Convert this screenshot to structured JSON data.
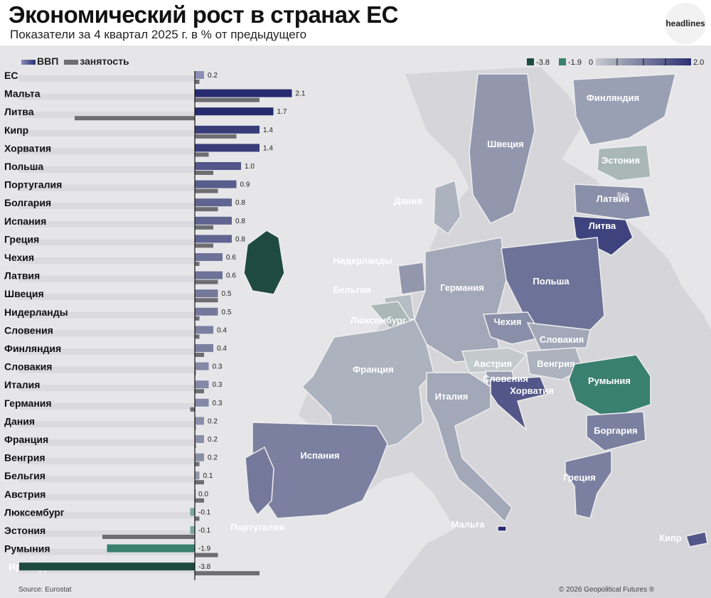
{
  "header": {
    "title": "Экономический рост в странах ЕС",
    "subtitle": "Показатели за 4 квартал 2025 г. в % от предыдущего",
    "logo": "headlines"
  },
  "legend": {
    "gdp": "ВВП",
    "employment": "занятость",
    "scale_labels": [
      "-3.8",
      "-1.9",
      "0",
      "2.0"
    ]
  },
  "colors": {
    "gdp_positive": "#2b3174",
    "gdp_negative": "#3a8070",
    "employment": "#6e6e72",
    "track": "#d7d7db",
    "map_scale": [
      "#1f4a42",
      "#3a8070",
      "#c4cacc",
      "#2b2f72"
    ]
  },
  "chart_data": {
    "type": "bar",
    "orientation": "horizontal",
    "categories": [
      "ЕС",
      "Мальта",
      "Литва",
      "Кипр",
      "Хорватия",
      "Польша",
      "Португалия",
      "Болгария",
      "Испания",
      "Греция",
      "Чехия",
      "Латвия",
      "Швеция",
      "Нидерланды",
      "Словения",
      "Финляндия",
      "Словакия",
      "Италия",
      "Германия",
      "Дания",
      "Франция",
      "Венгрия",
      "Бельгия",
      "Австрия",
      "Люксембург",
      "Эстония",
      "Румыния",
      "Ирландия"
    ],
    "series": [
      {
        "name": "ВВП",
        "values": [
          0.2,
          2.1,
          1.7,
          1.4,
          1.4,
          1.0,
          0.9,
          0.8,
          0.8,
          0.8,
          0.6,
          0.6,
          0.5,
          0.5,
          0.4,
          0.4,
          0.3,
          0.3,
          0.3,
          0.2,
          0.2,
          0.2,
          0.1,
          0.0,
          -0.1,
          -0.1,
          -1.9,
          -3.8
        ]
      },
      {
        "name": "занятость",
        "values": [
          0.1,
          1.4,
          -2.6,
          0.9,
          0.3,
          0.4,
          0.5,
          0.5,
          0.4,
          0.4,
          0.1,
          0.5,
          0.5,
          0.1,
          0.1,
          0.2,
          0.0,
          0.2,
          -0.1,
          0.0,
          0.0,
          0.1,
          0.2,
          0.2,
          0.1,
          -2.0,
          0.5,
          1.4
        ]
      }
    ],
    "value_labels": [
      "0.2",
      "2.1",
      "1.7",
      "1.4",
      "1.4",
      "1.0",
      "0.9",
      "0.8",
      "0.8",
      "0.8",
      "0.6",
      "0.6",
      "0.5",
      "0.5",
      "0.4",
      "0.4",
      "0.3",
      "0.3",
      "0.3",
      "0.2",
      "0.2",
      "0.2",
      "0.1",
      "0.0",
      "-0.1",
      "-0.1",
      "-1.9",
      "-3.8"
    ],
    "xlim": [
      -4.2,
      2.2
    ]
  },
  "map": {
    "regions": [
      {
        "name": "Финляндия",
        "value": 0.4,
        "label": "Финляндия"
      },
      {
        "name": "Швеция",
        "value": 0.5,
        "label": "Швеция"
      },
      {
        "name": "Эстония",
        "value": -0.1,
        "label": "Эстония"
      },
      {
        "name": "Латвия",
        "value": 0.6,
        "label": "Латвия"
      },
      {
        "name": "Литва",
        "value": 1.7,
        "label": "Литва"
      },
      {
        "name": "Дания",
        "value": 0.2,
        "label": "Дания"
      },
      {
        "name": "Нидерланды",
        "value": 0.5,
        "label": "Нидерланды"
      },
      {
        "name": "Бельгия",
        "value": 0.1,
        "label": "Бельгия"
      },
      {
        "name": "Люксембург",
        "value": -0.1,
        "label": "Люксембург"
      },
      {
        "name": "Германия",
        "value": 0.3,
        "label": "Германия"
      },
      {
        "name": "Польша",
        "value": 1.0,
        "label": "Польша"
      },
      {
        "name": "Чехия",
        "value": 0.6,
        "label": "Чехия"
      },
      {
        "name": "Словакия",
        "value": 0.3,
        "label": "Словакия"
      },
      {
        "name": "Австрия",
        "value": 0.0,
        "label": "Австрия"
      },
      {
        "name": "Венгрия",
        "value": 0.2,
        "label": "Венгрия"
      },
      {
        "name": "Словения",
        "value": 0.4,
        "label": "Словения"
      },
      {
        "name": "Хорватия",
        "value": 1.4,
        "label": "Хорватия"
      },
      {
        "name": "Франция",
        "value": 0.2,
        "label": "Франция"
      },
      {
        "name": "Италия",
        "value": 0.3,
        "label": "Италия"
      },
      {
        "name": "Румыния",
        "value": -1.9,
        "label": "Румыния"
      },
      {
        "name": "Болгария",
        "value": 0.8,
        "label": "Боргария"
      },
      {
        "name": "Греция",
        "value": 0.8,
        "label": "Греция"
      },
      {
        "name": "Испания",
        "value": 0.8,
        "label": "Испания"
      },
      {
        "name": "Португалия",
        "value": 0.9,
        "label": "Португалия"
      },
      {
        "name": "Ирландия",
        "value": -3.8,
        "label": ""
      },
      {
        "name": "Мальта",
        "value": 2.1,
        "label": "Мальта"
      },
      {
        "name": "Кипр",
        "value": 1.4,
        "label": "Кипр"
      }
    ],
    "sea_label": "Balt"
  },
  "footer": {
    "source": "Source: Eurostat",
    "copyright": "© 2026 Geopolitical Futures ®"
  }
}
